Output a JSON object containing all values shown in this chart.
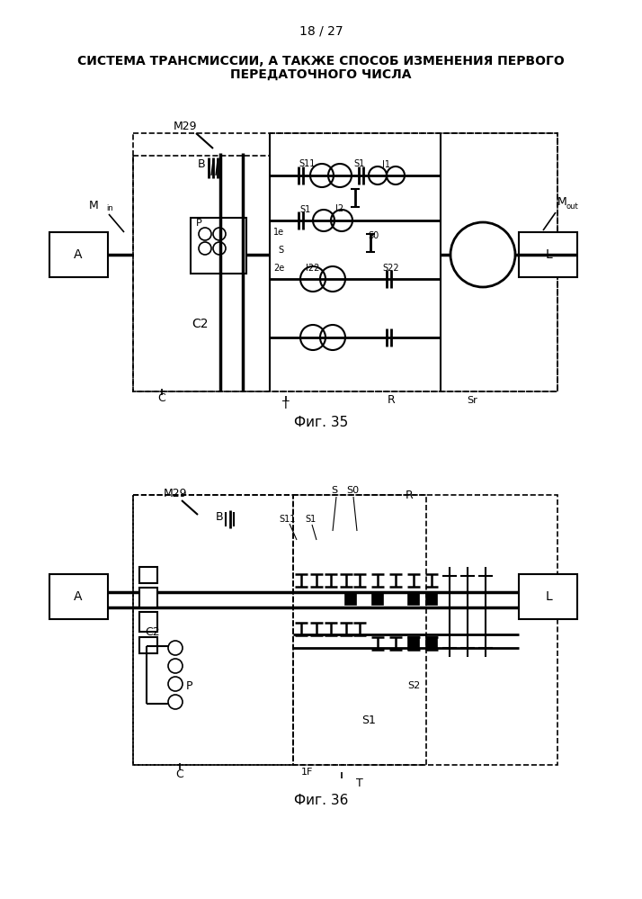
{
  "page_label": "18 / 27",
  "title_line1": "СИСТЕМА ТРАНСМИССИИ, А ТАКЖЕ СПОСОБ ИЗМЕНЕНИЯ ПЕРВОГО",
  "title_line2": "ПЕРЕДАТОЧНОГО ЧИСЛА",
  "fig35_label": "Фиг. 35",
  "fig36_label": "Фиг. 36",
  "bg_color": "#ffffff"
}
